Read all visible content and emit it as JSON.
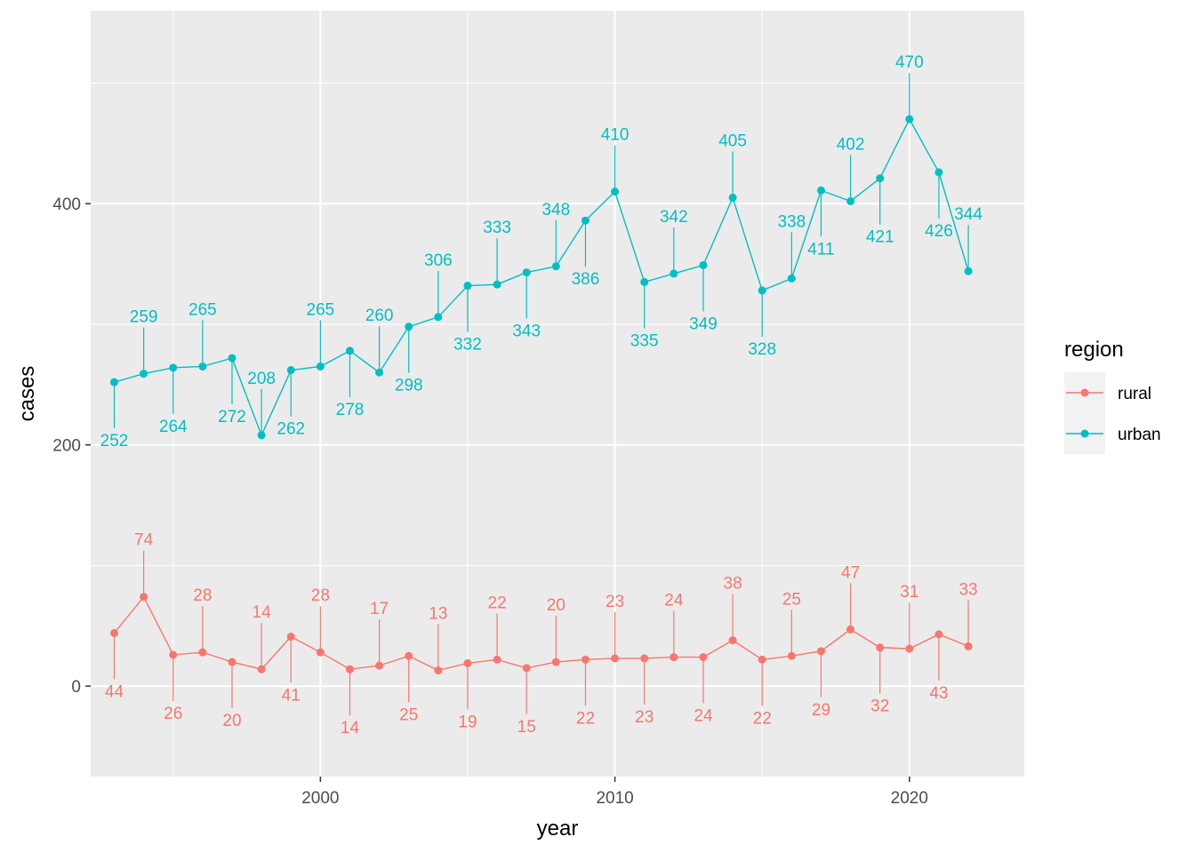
{
  "chart_data": {
    "type": "line",
    "xlabel": "year",
    "ylabel": "cases",
    "xlim": [
      1992.2,
      2023.9
    ],
    "ylim": [
      -75,
      560
    ],
    "x_ticks": [
      2000,
      2010,
      2020
    ],
    "y_ticks": [
      0,
      200,
      400
    ],
    "x_tick_labels": [
      "2000",
      "2010",
      "2020"
    ],
    "y_tick_labels": [
      "0",
      "200",
      "400"
    ],
    "grid": true,
    "legend": {
      "title": "region",
      "placement": "right"
    },
    "x": [
      1993,
      1994,
      1995,
      1996,
      1997,
      1998,
      1999,
      2000,
      2001,
      2002,
      2003,
      2004,
      2005,
      2006,
      2007,
      2008,
      2009,
      2010,
      2011,
      2012,
      2013,
      2014,
      2015,
      2016,
      2017,
      2018,
      2019,
      2020,
      2021,
      2022
    ],
    "series": [
      {
        "name": "rural",
        "color": "#F8766D",
        "values": [
          44,
          74,
          26,
          28,
          20,
          14,
          41,
          28,
          14,
          17,
          25,
          13,
          19,
          22,
          15,
          20,
          22,
          23,
          23,
          24,
          24,
          38,
          22,
          25,
          29,
          47,
          32,
          31,
          43,
          33
        ],
        "label_side": [
          "down",
          "up",
          "down",
          "up",
          "down",
          "up",
          "down",
          "up",
          "down",
          "up",
          "down",
          "up",
          "down",
          "up",
          "down",
          "up",
          "down",
          "up",
          "down",
          "up",
          "down",
          "up",
          "down",
          "up",
          "down",
          "up",
          "down",
          "up",
          "down",
          "up"
        ]
      },
      {
        "name": "urban",
        "color": "#00BFC4",
        "values": [
          252,
          259,
          264,
          265,
          272,
          208,
          262,
          265,
          278,
          260,
          298,
          306,
          332,
          333,
          343,
          348,
          386,
          410,
          335,
          342,
          349,
          405,
          328,
          338,
          411,
          402,
          421,
          470,
          426,
          344
        ],
        "label_side": [
          "down",
          "up",
          "down",
          "up",
          "down",
          "up",
          "down",
          "up",
          "down",
          "up",
          "down",
          "up",
          "down",
          "up",
          "down",
          "up",
          "down",
          "up",
          "down",
          "up",
          "down",
          "up",
          "down",
          "up",
          "down",
          "up",
          "down",
          "up",
          "down",
          "up"
        ]
      }
    ]
  }
}
